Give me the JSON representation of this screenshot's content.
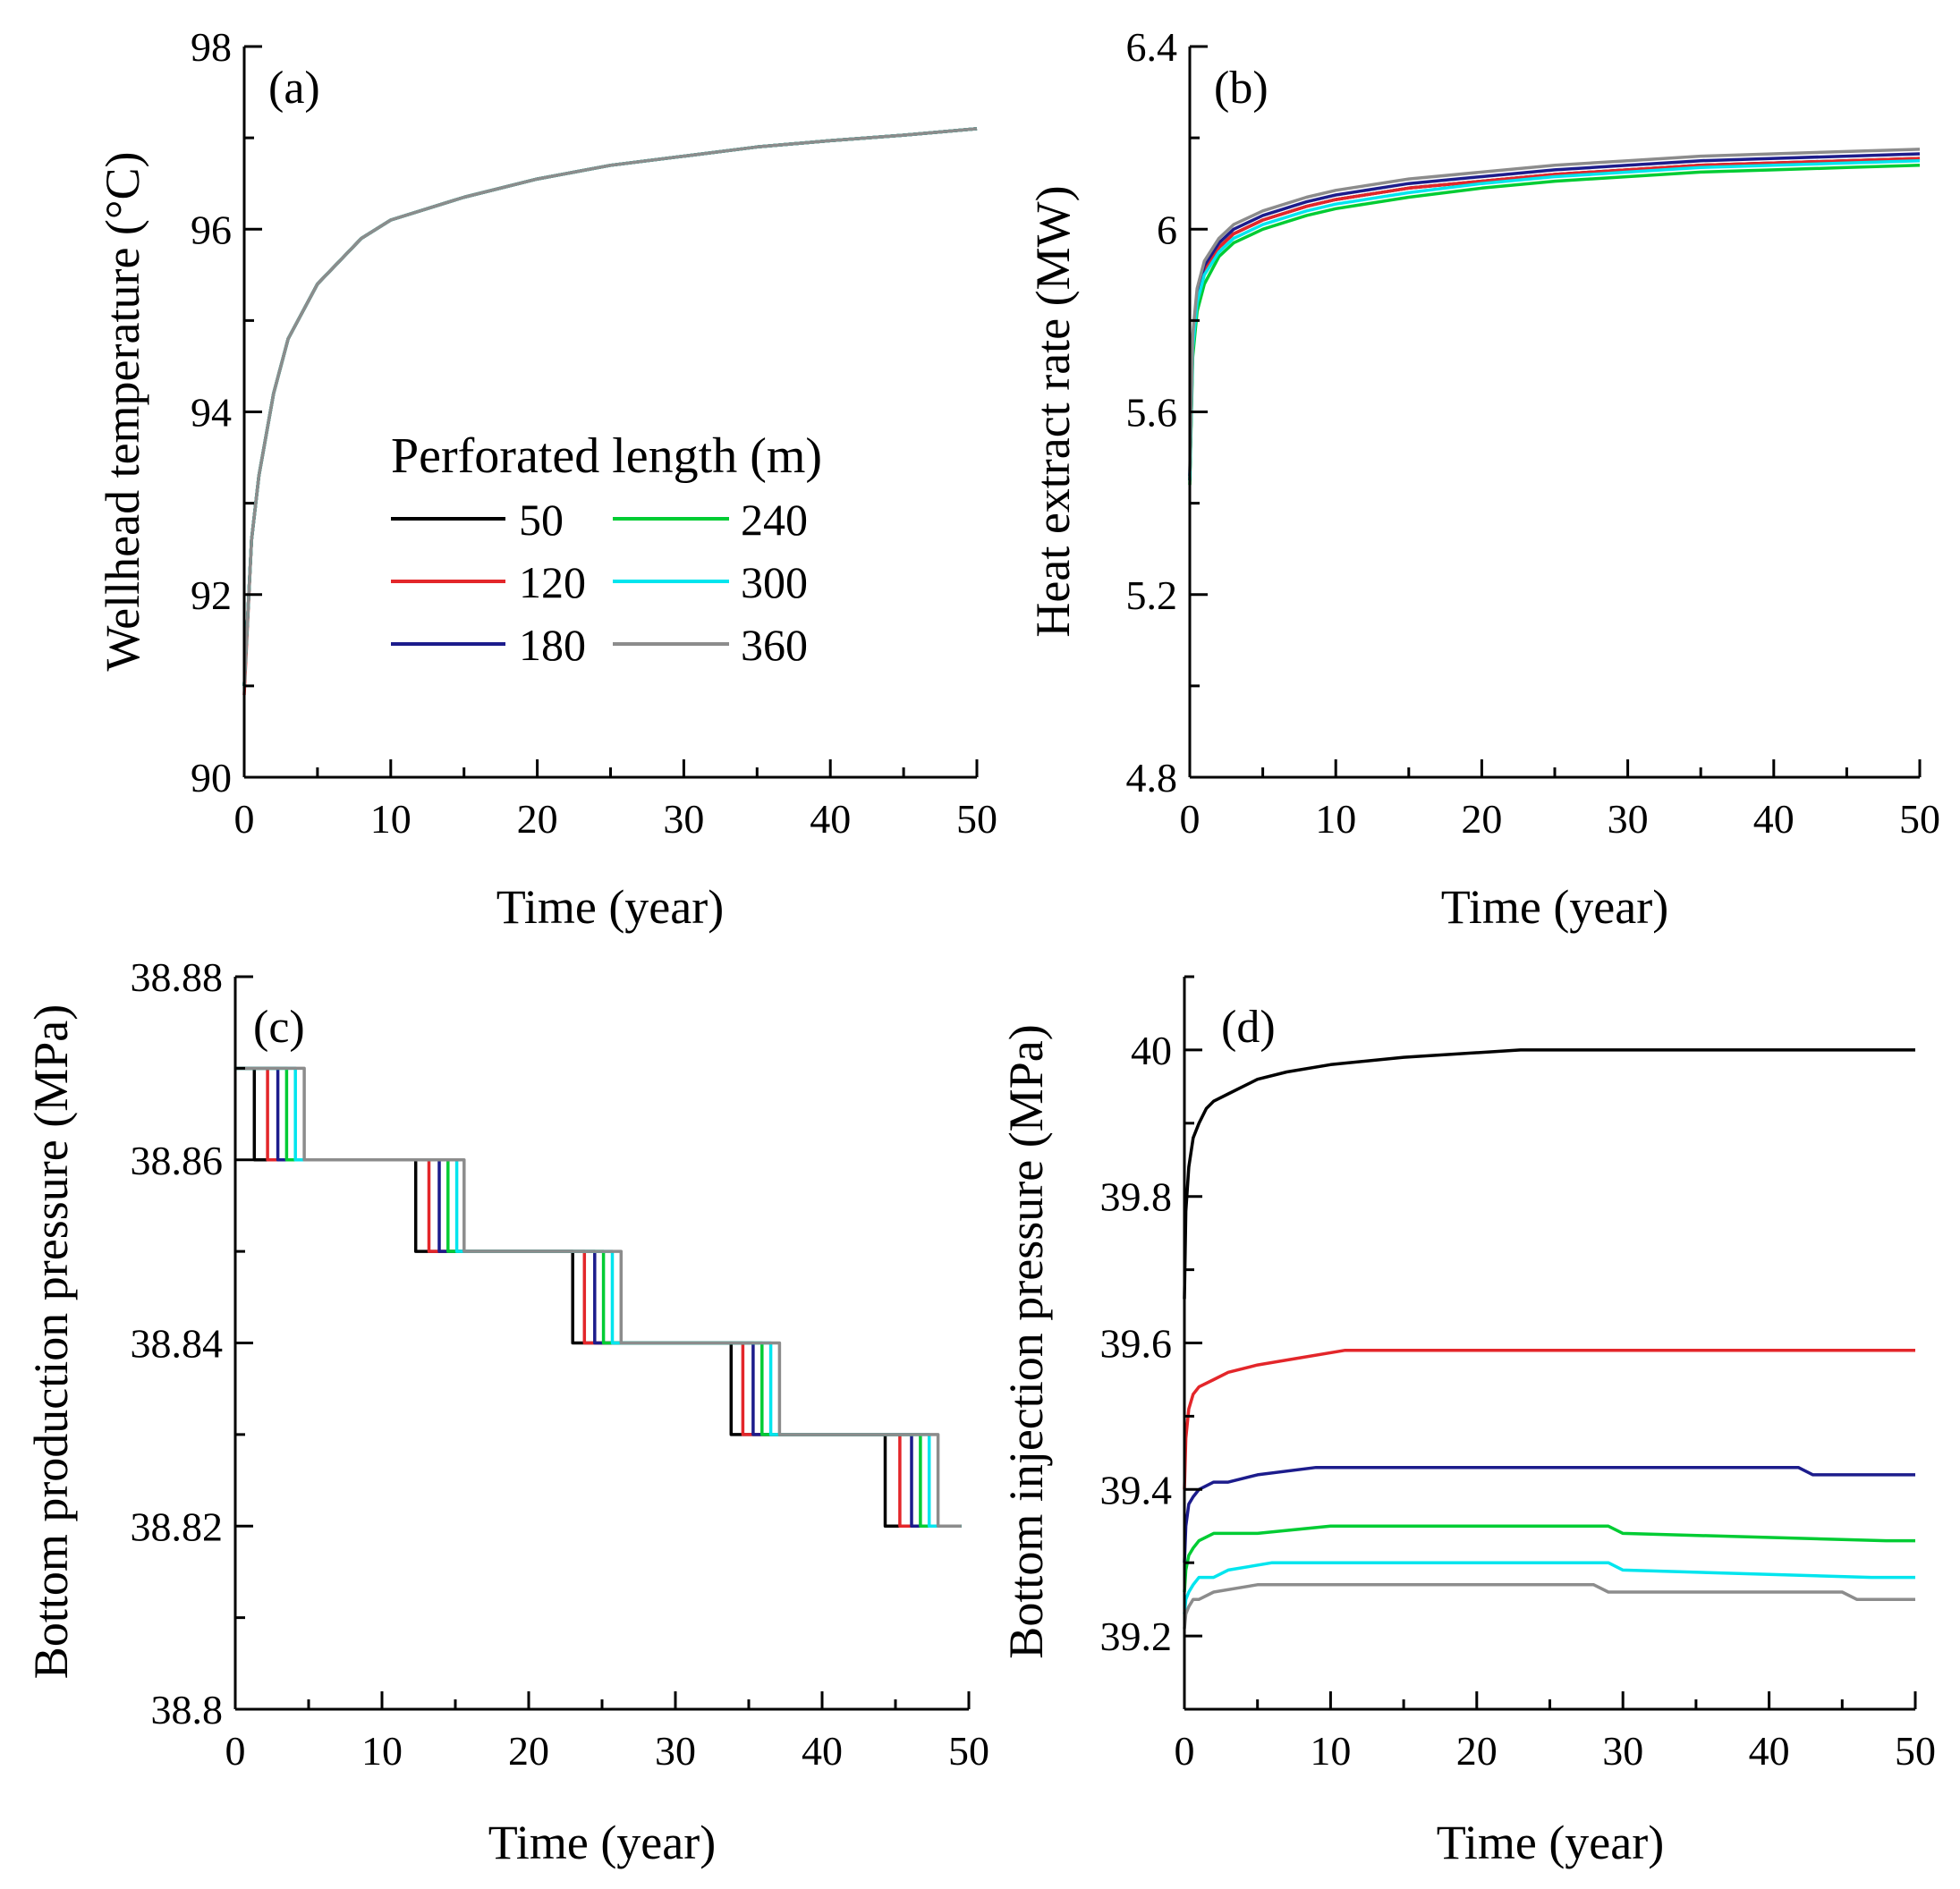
{
  "figure_title": "",
  "legend": {
    "title": "Perforated length (m)",
    "entries": [
      {
        "label": "50",
        "color": "#000000"
      },
      {
        "label": "240",
        "color": "#00cc33"
      },
      {
        "label": "120",
        "color": "#e3262a"
      },
      {
        "label": "300",
        "color": "#00e5ee"
      },
      {
        "label": "180",
        "color": "#1c1c8c"
      },
      {
        "label": "360",
        "color": "#8c8c8c"
      }
    ]
  },
  "chart_data": [
    {
      "panel": "(a)",
      "type": "line",
      "xlabel": "Time (year)",
      "ylabel": "Wellhead temperature (°C)",
      "xlim": [
        0,
        50
      ],
      "ylim": [
        90,
        98
      ],
      "xticks": [
        "0",
        "10",
        "20",
        "30",
        "40",
        "50"
      ],
      "yticks": [
        "90",
        "92",
        "94",
        "96",
        "98"
      ],
      "series": [
        {
          "name": "50",
          "color": "#000000",
          "x": [
            0,
            0.5,
            1,
            2,
            3,
            5,
            8,
            10,
            15,
            20,
            25,
            30,
            35,
            40,
            45,
            50
          ],
          "y": [
            91.0,
            92.6,
            93.3,
            94.2,
            94.8,
            95.4,
            95.9,
            96.1,
            96.35,
            96.55,
            96.7,
            96.8,
            96.9,
            96.97,
            97.03,
            97.1
          ]
        },
        {
          "name": "120",
          "color": "#e3262a",
          "x": [
            0,
            0.5,
            1,
            2,
            3,
            5,
            8,
            10,
            15,
            20,
            25,
            30,
            35,
            40,
            45,
            50
          ],
          "y": [
            90.9,
            92.6,
            93.3,
            94.2,
            94.8,
            95.4,
            95.9,
            96.1,
            96.35,
            96.55,
            96.7,
            96.8,
            96.9,
            96.97,
            97.03,
            97.1
          ]
        },
        {
          "name": "180",
          "color": "#1c1c8c",
          "x": [
            0,
            0.5,
            1,
            2,
            3,
            5,
            8,
            10,
            15,
            20,
            25,
            30,
            35,
            40,
            45,
            50
          ],
          "y": [
            91.0,
            92.6,
            93.3,
            94.2,
            94.8,
            95.4,
            95.9,
            96.1,
            96.35,
            96.55,
            96.7,
            96.8,
            96.9,
            96.97,
            97.03,
            97.1
          ]
        },
        {
          "name": "240",
          "color": "#00cc33",
          "x": [
            0,
            0.5,
            1,
            2,
            3,
            5,
            8,
            10,
            15,
            20,
            25,
            30,
            35,
            40,
            45,
            50
          ],
          "y": [
            91.0,
            92.6,
            93.3,
            94.2,
            94.8,
            95.4,
            95.9,
            96.1,
            96.35,
            96.55,
            96.7,
            96.8,
            96.9,
            96.97,
            97.03,
            97.1
          ]
        },
        {
          "name": "300",
          "color": "#00e5ee",
          "x": [
            0,
            0.5,
            1,
            2,
            3,
            5,
            8,
            10,
            15,
            20,
            25,
            30,
            35,
            40,
            45,
            50
          ],
          "y": [
            91.0,
            92.6,
            93.3,
            94.2,
            94.8,
            95.4,
            95.9,
            96.1,
            96.35,
            96.55,
            96.7,
            96.8,
            96.9,
            96.97,
            97.03,
            97.1
          ]
        },
        {
          "name": "360",
          "color": "#8c8c8c",
          "x": [
            0,
            0.5,
            1,
            2,
            3,
            5,
            8,
            10,
            15,
            20,
            25,
            30,
            35,
            40,
            45,
            50
          ],
          "y": [
            91.0,
            92.6,
            93.3,
            94.2,
            94.8,
            95.4,
            95.9,
            96.1,
            96.35,
            96.55,
            96.7,
            96.8,
            96.9,
            96.97,
            97.03,
            97.1
          ]
        }
      ]
    },
    {
      "panel": "(b)",
      "type": "line",
      "xlabel": "Time (year)",
      "ylabel": "Heat extract rate (MW)",
      "xlim": [
        0,
        50
      ],
      "ylim": [
        4.8,
        6.4
      ],
      "xticks": [
        "0",
        "10",
        "20",
        "30",
        "40",
        "50"
      ],
      "yticks": [
        "4.8",
        "5.2",
        "5.6",
        "6",
        "6.4"
      ],
      "series": [
        {
          "name": "50",
          "color": "#000000",
          "x": [
            0,
            0.2,
            0.5,
            1,
            2,
            3,
            5,
            8,
            10,
            15,
            20,
            25,
            30,
            35,
            40,
            45,
            50
          ],
          "y": [
            5.45,
            5.75,
            5.85,
            5.91,
            5.96,
            5.99,
            6.02,
            6.05,
            6.065,
            6.09,
            6.105,
            6.12,
            6.13,
            6.14,
            6.145,
            6.15,
            6.155
          ]
        },
        {
          "name": "120",
          "color": "#e3262a",
          "x": [
            0,
            0.2,
            0.5,
            1,
            2,
            3,
            5,
            8,
            10,
            15,
            20,
            25,
            30,
            35,
            40,
            45,
            50
          ],
          "y": [
            5.45,
            5.75,
            5.85,
            5.91,
            5.96,
            5.99,
            6.02,
            6.05,
            6.065,
            6.09,
            6.105,
            6.12,
            6.13,
            6.14,
            6.145,
            6.15,
            6.155
          ]
        },
        {
          "name": "180",
          "color": "#1c1c8c",
          "x": [
            0,
            0.2,
            0.5,
            1,
            2,
            3,
            5,
            8,
            10,
            15,
            20,
            25,
            30,
            35,
            40,
            45,
            50
          ],
          "y": [
            5.46,
            5.76,
            5.86,
            5.92,
            5.97,
            6.0,
            6.03,
            6.06,
            6.075,
            6.1,
            6.115,
            6.13,
            6.14,
            6.15,
            6.155,
            6.16,
            6.165
          ]
        },
        {
          "name": "240",
          "color": "#00cc33",
          "x": [
            0,
            0.2,
            0.5,
            1,
            2,
            3,
            5,
            8,
            10,
            15,
            20,
            25,
            30,
            35,
            40,
            45,
            50
          ],
          "y": [
            5.44,
            5.72,
            5.82,
            5.88,
            5.94,
            5.97,
            6.0,
            6.03,
            6.045,
            6.07,
            6.09,
            6.105,
            6.115,
            6.125,
            6.13,
            6.135,
            6.14
          ]
        },
        {
          "name": "300",
          "color": "#00e5ee",
          "x": [
            0,
            0.2,
            0.5,
            1,
            2,
            3,
            5,
            8,
            10,
            15,
            20,
            25,
            30,
            35,
            40,
            45,
            50
          ],
          "y": [
            5.45,
            5.74,
            5.84,
            5.9,
            5.95,
            5.98,
            6.01,
            6.04,
            6.055,
            6.08,
            6.1,
            6.115,
            6.125,
            6.135,
            6.14,
            6.145,
            6.15
          ]
        },
        {
          "name": "360",
          "color": "#8c8c8c",
          "x": [
            0,
            0.2,
            0.5,
            1,
            2,
            3,
            5,
            8,
            10,
            15,
            20,
            25,
            30,
            35,
            40,
            45,
            50
          ],
          "y": [
            5.47,
            5.77,
            5.87,
            5.93,
            5.98,
            6.01,
            6.04,
            6.07,
            6.085,
            6.11,
            6.125,
            6.14,
            6.15,
            6.16,
            6.165,
            6.17,
            6.175
          ]
        }
      ]
    },
    {
      "panel": "(c)",
      "type": "line",
      "xlabel": "Time (year)",
      "ylabel": "Bottom production pressure (MPa)",
      "xlim": [
        0,
        50
      ],
      "ylim": [
        38.8,
        38.88
      ],
      "xticks": [
        "0",
        "10",
        "20",
        "30",
        "40",
        "50"
      ],
      "yticks": [
        "38.8",
        "38.82",
        "38.84",
        "38.86",
        "38.88"
      ],
      "levels": [
        38.87,
        38.86,
        38.85,
        38.84,
        38.83,
        38.82
      ],
      "end_x": 49.5,
      "series": [
        {
          "name": "50",
          "color": "#000000",
          "steps": [
            1.3,
            12.3,
            23.0,
            33.8,
            44.3
          ]
        },
        {
          "name": "120",
          "color": "#e3262a",
          "steps": [
            2.2,
            13.2,
            23.8,
            34.6,
            45.3
          ]
        },
        {
          "name": "180",
          "color": "#1c1c8c",
          "steps": [
            2.9,
            13.9,
            24.5,
            35.3,
            46.1
          ]
        },
        {
          "name": "240",
          "color": "#00cc33",
          "steps": [
            3.5,
            14.5,
            25.1,
            35.9,
            46.7
          ]
        },
        {
          "name": "300",
          "color": "#00e5ee",
          "steps": [
            4.1,
            15.1,
            25.7,
            36.5,
            47.3
          ]
        },
        {
          "name": "360",
          "color": "#8c8c8c",
          "steps": [
            4.7,
            15.6,
            26.3,
            37.1,
            47.9
          ]
        }
      ]
    },
    {
      "panel": "(d)",
      "type": "line",
      "xlabel": "Time (year)",
      "ylabel": "Bottom injection pressure (MPa)",
      "xlim": [
        0,
        50
      ],
      "ylim": [
        39.1,
        40.1
      ],
      "xticks": [
        "0",
        "10",
        "20",
        "30",
        "40",
        "50"
      ],
      "yticks": [
        "39.2",
        "39.4",
        "39.6",
        "39.8",
        "40"
      ],
      "series": [
        {
          "name": "50",
          "color": "#000000",
          "x": [
            0,
            0.1,
            0.3,
            0.6,
            1,
            1.5,
            2,
            3,
            4,
            5,
            7,
            10,
            15,
            23,
            50
          ],
          "y": [
            39.66,
            39.78,
            39.84,
            39.88,
            39.9,
            39.92,
            39.93,
            39.94,
            39.95,
            39.96,
            39.97,
            39.98,
            39.99,
            40.0,
            40.0
          ]
        },
        {
          "name": "120",
          "color": "#e3262a",
          "x": [
            0,
            0.1,
            0.3,
            0.6,
            1,
            2,
            3,
            5,
            8,
            11,
            50
          ],
          "y": [
            39.4,
            39.47,
            39.51,
            39.53,
            39.54,
            39.55,
            39.56,
            39.57,
            39.58,
            39.59,
            39.59
          ]
        },
        {
          "name": "180",
          "color": "#1c1c8c",
          "x": [
            0,
            0.1,
            0.3,
            0.6,
            1,
            2,
            3,
            5,
            9,
            42,
            43,
            50
          ],
          "y": [
            39.3,
            39.35,
            39.38,
            39.39,
            39.4,
            39.41,
            39.41,
            39.42,
            39.43,
            39.43,
            39.42,
            39.42
          ]
        },
        {
          "name": "240",
          "color": "#00cc33",
          "x": [
            0,
            0.1,
            0.3,
            0.6,
            1,
            2,
            5,
            10,
            29,
            30,
            48,
            50
          ],
          "y": [
            39.26,
            39.29,
            39.31,
            39.32,
            39.33,
            39.34,
            39.34,
            39.35,
            39.35,
            39.34,
            39.33,
            39.33
          ]
        },
        {
          "name": "300",
          "color": "#00e5ee",
          "x": [
            0,
            0.1,
            0.3,
            0.6,
            1,
            2,
            3,
            6,
            29,
            30,
            47,
            50
          ],
          "y": [
            39.23,
            39.25,
            39.26,
            39.27,
            39.28,
            39.28,
            39.29,
            39.3,
            39.3,
            39.29,
            39.28,
            39.28
          ]
        },
        {
          "name": "360",
          "color": "#8c8c8c",
          "x": [
            0,
            0.1,
            0.3,
            0.6,
            1,
            2,
            5,
            28,
            29,
            45,
            46,
            50
          ],
          "y": [
            39.21,
            39.23,
            39.24,
            39.25,
            39.25,
            39.26,
            39.27,
            39.27,
            39.26,
            39.26,
            39.25,
            39.25
          ]
        }
      ]
    }
  ]
}
